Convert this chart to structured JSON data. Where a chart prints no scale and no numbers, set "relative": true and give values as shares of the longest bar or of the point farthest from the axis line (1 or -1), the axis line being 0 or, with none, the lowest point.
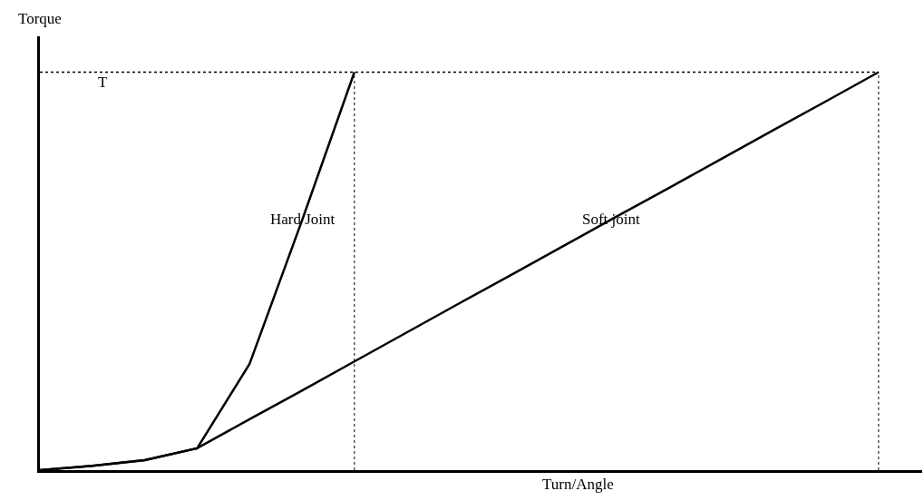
{
  "chart_data": {
    "type": "line",
    "relative": true,
    "xlabel": "Turn/Angle",
    "ylabel": "Torque",
    "grid": false,
    "legend": false,
    "marker": "none",
    "line_style": "solid",
    "categories": [
      null,
      null,
      null,
      null,
      null,
      null,
      null,
      null,
      null,
      null,
      null,
      null,
      null,
      null,
      null,
      null,
      null
    ],
    "series": [
      {
        "name": "Hard Joint",
        "color": "#000000",
        "values": [
          0,
          0.011,
          0.025,
          0.055,
          0.267,
          0.627,
          1,
          null,
          null,
          null,
          null,
          null,
          null,
          null,
          null,
          null,
          null
        ]
      },
      {
        "name": "Soft joint",
        "color": "#000000",
        "values": [
          0,
          0.011,
          0.025,
          0.055,
          0.128,
          0.2,
          0.273,
          0.346,
          0.419,
          0.491,
          0.564,
          0.637,
          0.709,
          0.782,
          0.855,
          0.927,
          1
        ]
      }
    ],
    "ref_lines": [
      {
        "axis": "y",
        "value": 1,
        "label": "T",
        "line_style": "dotted",
        "color": "#000000"
      }
    ]
  }
}
